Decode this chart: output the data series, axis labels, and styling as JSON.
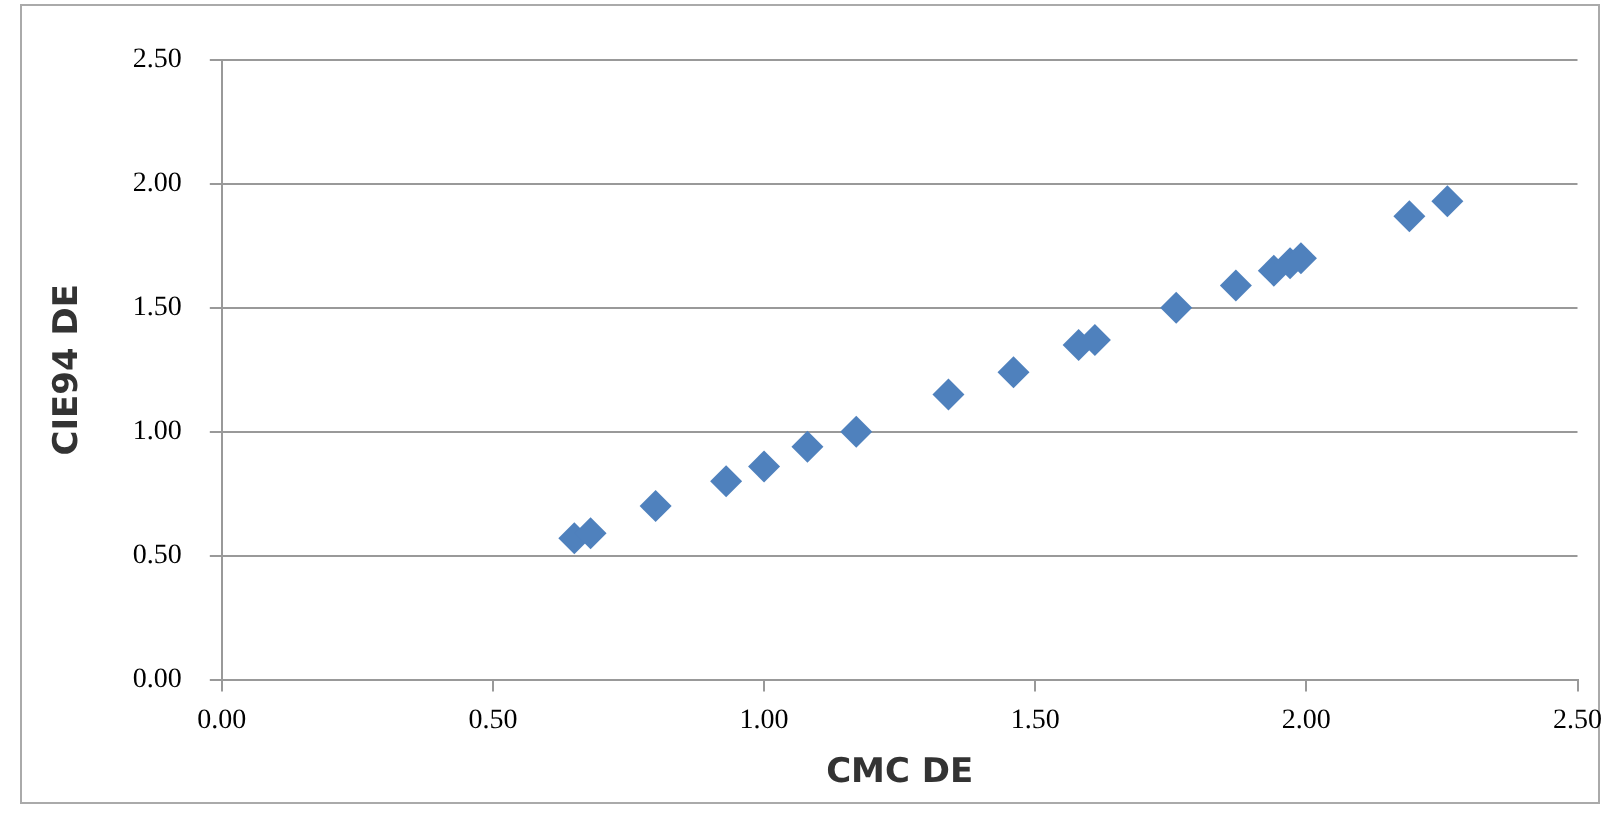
{
  "chart_data": {
    "type": "scatter",
    "xlabel": "CMC DE",
    "ylabel": "CIE94 DE",
    "x": [
      0.65,
      0.68,
      0.8,
      0.93,
      1.0,
      1.08,
      1.17,
      1.34,
      1.46,
      1.58,
      1.61,
      1.76,
      1.87,
      1.94,
      1.97,
      1.99,
      2.19,
      2.26
    ],
    "series": [
      {
        "color": "#4f81bd",
        "values": [
          0.57,
          0.59,
          0.7,
          0.8,
          0.86,
          0.94,
          1.0,
          1.15,
          1.24,
          1.35,
          1.37,
          1.5,
          1.59,
          1.65,
          1.68,
          1.7,
          1.87,
          1.93
        ]
      }
    ],
    "xlim": [
      0,
      2.5
    ],
    "xticks": [
      {
        "value": 0,
        "label": "0.00"
      },
      {
        "value": 0.5,
        "label": "0.50"
      },
      {
        "value": 1,
        "label": "1.00"
      },
      {
        "value": 1.5,
        "label": "1.50"
      },
      {
        "value": 2,
        "label": "2.00"
      },
      {
        "value": 2.5,
        "label": "2.50"
      }
    ],
    "ylim": [
      0,
      2.5
    ],
    "yticks": [
      {
        "value": 0,
        "label": "0.00"
      },
      {
        "value": 0.5,
        "label": "0.50"
      },
      {
        "value": 1,
        "label": "1.00"
      },
      {
        "value": 1.5,
        "label": "1.50"
      },
      {
        "value": 2,
        "label": "2.00"
      },
      {
        "value": 2.5,
        "label": "2.50"
      }
    ],
    "grid": "y",
    "legend": false,
    "marker": "diamond"
  }
}
